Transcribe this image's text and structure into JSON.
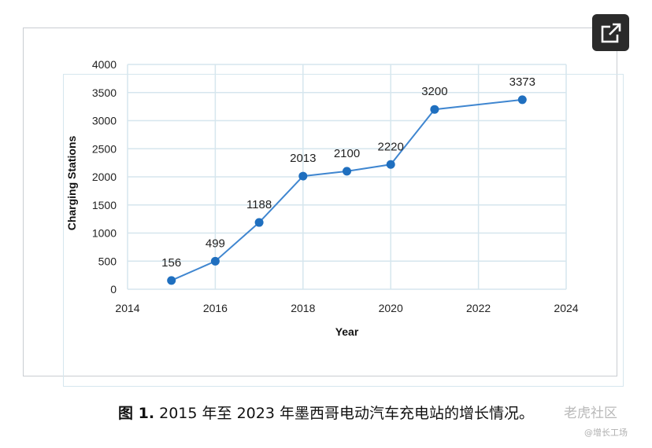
{
  "popout": {
    "icon": "external-link-icon"
  },
  "caption": {
    "label": "图 1.",
    "text": " 2015 年至 2023 年墨西哥电动汽车充电站的增长情况。"
  },
  "watermark": {
    "main": "老虎社区",
    "sub": "@增长工场"
  },
  "colors": {
    "line": "#3f86d0",
    "marker": "#1f6fbf",
    "grid": "#d6e6ee"
  },
  "chart_data": {
    "type": "scatter",
    "title": "",
    "xlabel": "Year",
    "ylabel": "Charging Stations",
    "xlim": [
      2014,
      2024
    ],
    "ylim": [
      0,
      4000
    ],
    "xticks": [
      2014,
      2016,
      2018,
      2020,
      2022,
      2024
    ],
    "yticks": [
      0,
      500,
      1000,
      1500,
      2000,
      2500,
      3000,
      3500,
      4000
    ],
    "grid": true,
    "series": [
      {
        "x": [
          2015,
          2016,
          2017,
          2018,
          2019,
          2020,
          2021,
          2023
        ],
        "y": [
          156,
          499,
          1188,
          2013,
          2100,
          2220,
          3200,
          3373
        ],
        "labels": [
          "156",
          "499",
          "1188",
          "2013",
          "2100",
          "2220",
          "3200",
          "3373"
        ]
      }
    ]
  }
}
